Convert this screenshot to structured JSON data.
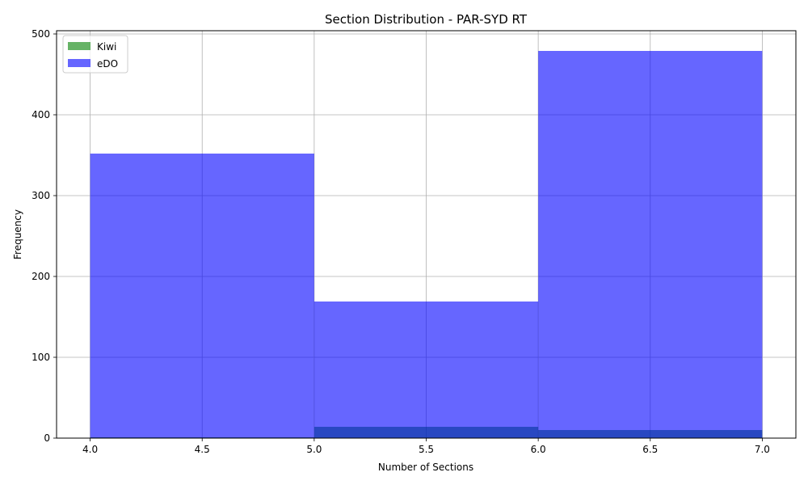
{
  "chart_data": {
    "type": "bar",
    "title": "Section Distribution - PAR-SYD RT",
    "xlabel": "Number of Sections",
    "ylabel": "Frequency",
    "xlim": [
      3.85,
      7.15
    ],
    "ylim": [
      0,
      504
    ],
    "xticks": [
      4.0,
      4.5,
      5.0,
      5.5,
      6.0,
      6.5,
      7.0
    ],
    "xtick_labels": [
      "4.0",
      "4.5",
      "5.0",
      "5.5",
      "6.0",
      "6.5",
      "7.0"
    ],
    "yticks": [
      0,
      100,
      200,
      300,
      400,
      500
    ],
    "ytick_labels": [
      "0",
      "100",
      "200",
      "300",
      "400",
      "500"
    ],
    "bin_edges": [
      4,
      5,
      6,
      7
    ],
    "grid": true,
    "legend_position": "upper-left",
    "series": [
      {
        "name": "Kiwi",
        "color": "#008000",
        "opacity": 0.6,
        "values": [
          1,
          14,
          10
        ]
      },
      {
        "name": "eDO",
        "color": "#0000ff",
        "opacity": 0.6,
        "values": [
          352,
          169,
          479
        ]
      }
    ]
  }
}
